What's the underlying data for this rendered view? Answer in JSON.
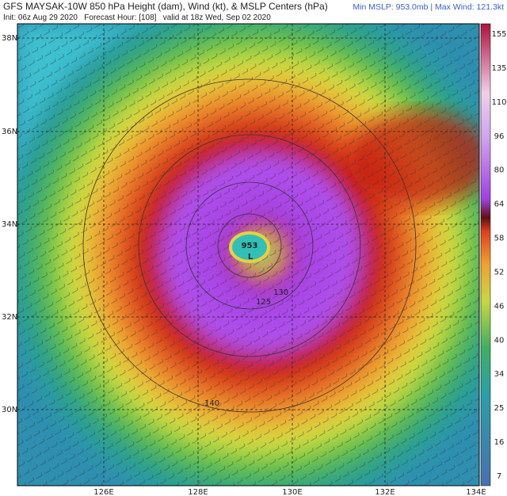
{
  "header": {
    "title": "GFS MAYSAK-10W 850 hPa Height (dam), Wind (kt), & MSLP Centers (hPa)",
    "subtitle": "Init: 06z Aug 29 2020   Forecast Hour: [108]   valid at 18z Wed, Sep 02 2020",
    "stats": "Min MSLP: 953.0mb | Max Wind: 121.3kt"
  },
  "map": {
    "lat_labels": [
      "38N",
      "36N",
      "34N",
      "32N",
      "30N"
    ],
    "lon_labels": [
      "126E",
      "128E",
      "130E",
      "132E",
      "134E"
    ],
    "low_pressure": "953",
    "low_symbol": "L",
    "contour_labels": [
      "125",
      "130",
      "140"
    ]
  },
  "colorbar": {
    "labels": [
      "155",
      "135",
      "110",
      "96",
      "80",
      "64",
      "58",
      "52",
      "46",
      "40",
      "34",
      "25",
      "16",
      "7"
    ]
  }
}
